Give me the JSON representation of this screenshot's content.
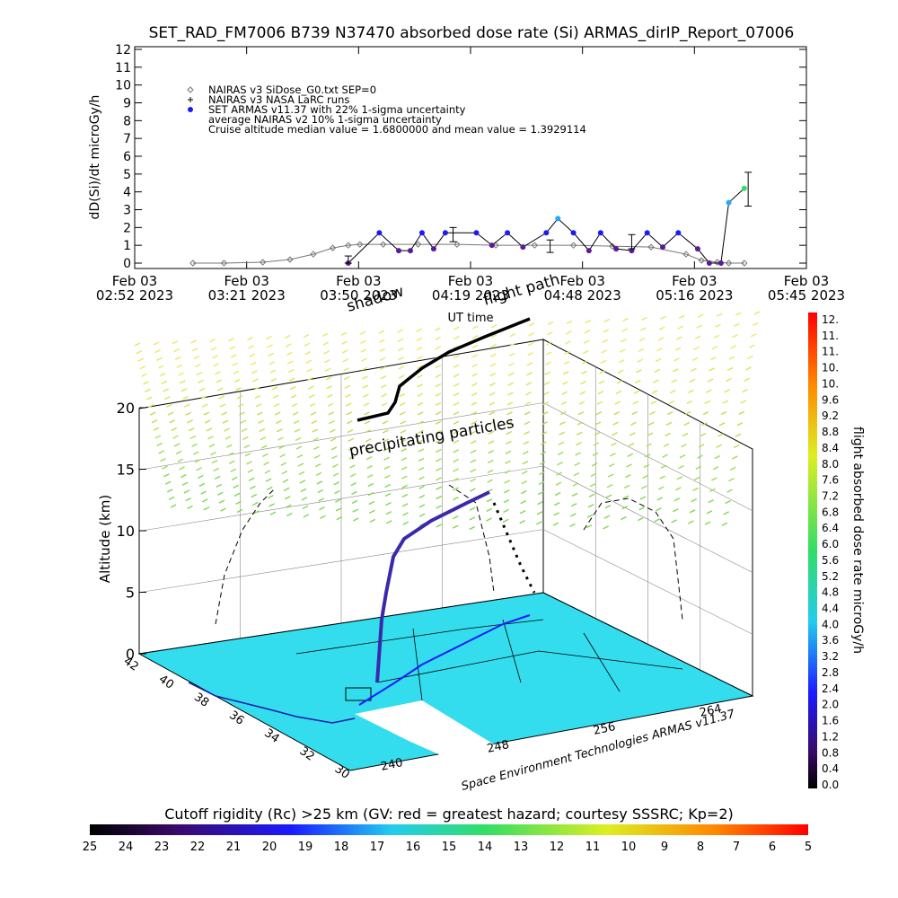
{
  "title": "SET_RAD_FM7006  B739 N37470 absorbed dose rate (Si) ARMAS_dirIP_Report_07006",
  "timeseries": {
    "ylabel": "dD(Si)/dt microGy/h",
    "xlabel": "UT time",
    "legend": [
      {
        "symbol": "diamond",
        "text": "NAIRAS v3 SiDose_G0.txt SEP=0"
      },
      {
        "symbol": "plus",
        "text": "NAIRAS v3 NASA LaRC runs"
      },
      {
        "symbol": "dot",
        "text": "SET ARMAS v11.37 with 22% 1-sigma uncertainty"
      },
      {
        "symbol": "none",
        "text": "average NAIRAS v2 10% 1-sigma uncertainty"
      },
      {
        "symbol": "none",
        "text": "Cruise altitude median value = 1.6800000 and mean value = 1.3929114"
      }
    ],
    "overlay_labels": [
      "flight path",
      "shadow"
    ]
  },
  "colors": {
    "armas_blue": "#1a1aff",
    "armas_purple": "#5a1a9a",
    "armas_cyan": "#22aaff",
    "armas_green": "#33dd66",
    "nairas": "#777777",
    "ground": "#33ddee",
    "coast": "#1a1aa8"
  },
  "colorbar_right": {
    "label": "flight absorbed dose rate microGy/h",
    "ticks": [
      "12.",
      "11.",
      "11.",
      "10.",
      "10.",
      "9.6",
      "9.2",
      "8.8",
      "8.4",
      "8.0",
      "7.6",
      "7.2",
      "6.8",
      "6.4",
      "6.0",
      "5.6",
      "5.2",
      "4.8",
      "4.4",
      "4.0",
      "3.6",
      "3.2",
      "2.8",
      "2.4",
      "2.0",
      "1.6",
      "1.2",
      "0.8",
      "0.4",
      "0.0"
    ]
  },
  "bottom_bar": {
    "label": "Cutoff rigidity (Rc) >25 km (GV: red = greatest hazard; courtesy SSSRC; Kp=2)",
    "ticks": [
      "25",
      "24",
      "23",
      "22",
      "21",
      "20",
      "19",
      "18",
      "17",
      "16",
      "15",
      "14",
      "13",
      "12",
      "11",
      "10",
      "9",
      "8",
      "7",
      "6",
      "5"
    ]
  },
  "three_d": {
    "zlabel": "Altitude (km)",
    "ztick_labels": [
      "0",
      "5",
      "10",
      "15",
      "20"
    ],
    "lat_ticks": [
      "42",
      "40",
      "38",
      "36",
      "34",
      "32",
      "30"
    ],
    "lon_ticks": [
      "240",
      "248",
      "256",
      "264"
    ],
    "annotation": "precipitating particles",
    "credit": "Space Environment Technologies ARMAS v11.37"
  },
  "chart_data": {
    "type": "line",
    "title": "SET_RAD_FM7006  B739 N37470 absorbed dose rate (Si) ARMAS_dirIP_Report_07006",
    "xlabel": "UT time",
    "ylabel": "dD(Si)/dt microGy/h",
    "ylim": [
      0,
      12
    ],
    "xlim": [
      "02:52",
      "05:45"
    ],
    "x_tick_labels": [
      {
        "date": "Feb 03",
        "time": "02:52 2023"
      },
      {
        "date": "Feb 03",
        "time": "03:21 2023"
      },
      {
        "date": "Feb 03",
        "time": "03:50 2023"
      },
      {
        "date": "Feb 03",
        "time": "04:19 2023"
      },
      {
        "date": "Feb 03",
        "time": "04:48 2023"
      },
      {
        "date": "Feb 03",
        "time": "05:16 2023"
      },
      {
        "date": "Feb 03",
        "time": "05:45 2023"
      }
    ],
    "y_tick_labels": [
      "0",
      "1",
      "2",
      "3",
      "4",
      "5",
      "6",
      "7",
      "8",
      "9",
      "10",
      "11",
      "12"
    ],
    "series": [
      {
        "name": "NAIRAS v3 SiDose_G0.txt SEP=0",
        "x": [
          "03:07",
          "03:15",
          "03:25",
          "03:32",
          "03:38",
          "03:43",
          "03:47",
          "03:50",
          "03:56",
          "04:05",
          "04:15",
          "04:25",
          "04:35",
          "04:45",
          "04:55",
          "05:05",
          "05:14",
          "05:18",
          "05:22",
          "05:25",
          "05:29"
        ],
        "values": [
          0.0,
          0.0,
          0.05,
          0.2,
          0.5,
          0.85,
          1.0,
          1.05,
          1.05,
          1.05,
          1.05,
          1.0,
          1.0,
          1.0,
          0.95,
          0.9,
          0.5,
          0.15,
          0.05,
          0.0,
          0.0
        ]
      },
      {
        "name": "SET ARMAS v11.37 with 22% 1-sigma uncertainty",
        "x": [
          "03:47",
          "03:55",
          "04:00",
          "04:03",
          "04:06",
          "04:09",
          "04:12",
          "04:20",
          "04:24",
          "04:28",
          "04:32",
          "04:38",
          "04:41",
          "04:45",
          "04:49",
          "04:52",
          "04:56",
          "05:00",
          "05:04",
          "05:08",
          "05:12",
          "05:17",
          "05:20",
          "05:23",
          "05:25",
          "05:29"
        ],
        "values": [
          0.0,
          1.7,
          0.7,
          0.7,
          1.7,
          0.8,
          1.7,
          1.7,
          1.0,
          1.7,
          0.9,
          1.7,
          2.5,
          1.7,
          0.7,
          1.7,
          0.8,
          0.7,
          1.7,
          0.9,
          1.7,
          0.8,
          0.0,
          0.0,
          3.4,
          4.2
        ]
      }
    ],
    "error_bars": [
      {
        "x": "03:47",
        "value": 0.1,
        "low": 0.0,
        "high": 0.4
      },
      {
        "x": "04:14",
        "value": 1.6,
        "low": 1.2,
        "high": 2.0
      },
      {
        "x": "04:39",
        "value": 0.9,
        "low": 0.6,
        "high": 1.3
      },
      {
        "x": "05:00",
        "value": 1.0,
        "low": 0.8,
        "high": 1.6
      },
      {
        "x": "05:30",
        "value": 4.2,
        "low": 3.2,
        "high": 5.1
      }
    ]
  }
}
